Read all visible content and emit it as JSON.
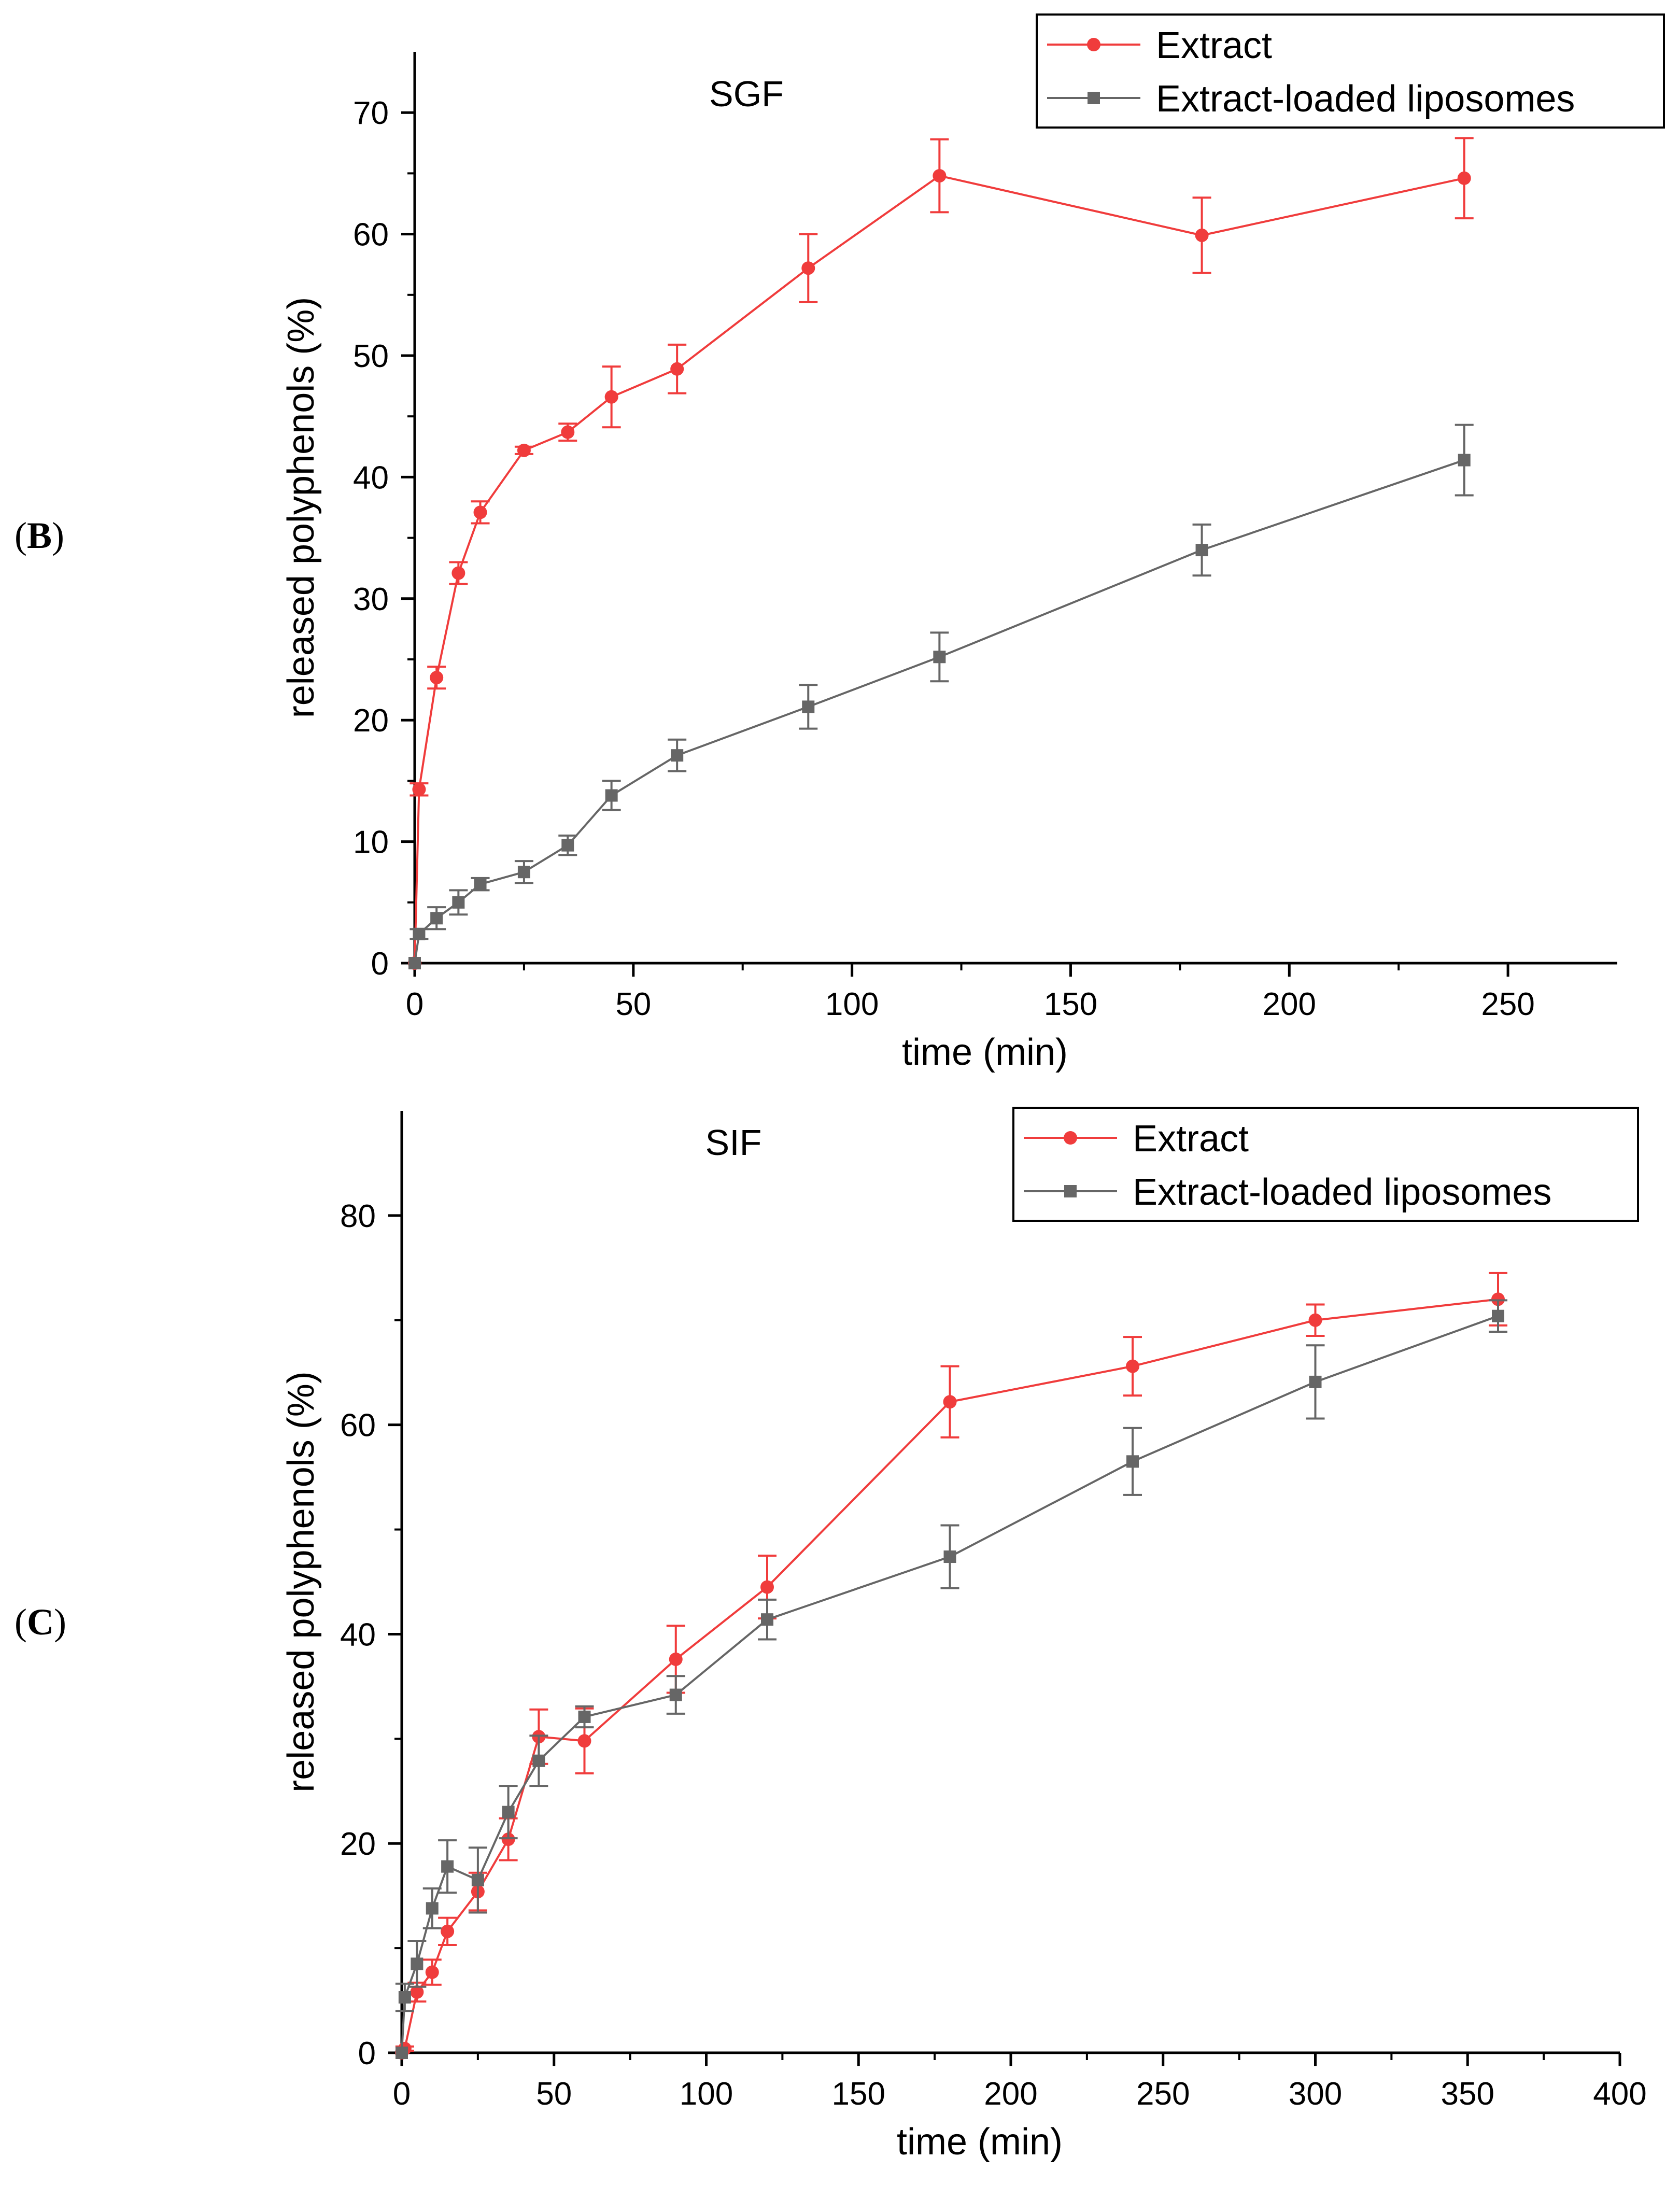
{
  "panels": [
    {
      "panel_label": "B",
      "title": "SGF",
      "xlabel": "time (min)",
      "ylabel": "released polyphenols (%)",
      "xlim": [
        0,
        275
      ],
      "ylim": [
        0,
        75
      ],
      "xticks": [
        0,
        50,
        100,
        150,
        200,
        250
      ],
      "yticks": [
        0,
        10,
        20,
        30,
        40,
        50,
        60,
        70
      ],
      "legend": [
        "Extract",
        "Extract-loaded liposomes"
      ],
      "legend_position": "top-right"
    },
    {
      "panel_label": "C",
      "title": "SIF",
      "xlabel": "time (min)",
      "ylabel": "released polyphenols (%)",
      "xlim": [
        0,
        400
      ],
      "ylim": [
        0,
        90
      ],
      "xticks": [
        0,
        50,
        100,
        150,
        200,
        250,
        300,
        350,
        400
      ],
      "yticks": [
        0,
        20,
        40,
        60,
        80
      ],
      "legend": [
        "Extract",
        "Extract-loaded liposomes"
      ],
      "legend_position": "top-right"
    }
  ],
  "colors": {
    "extract": "#f03c3c",
    "liposomes": "#666666",
    "axis": "#000000"
  },
  "chart_data": [
    {
      "type": "line",
      "title": "SGF",
      "xlabel": "time (min)",
      "ylabel": "released polyphenols (%)",
      "xlim": [
        0,
        275
      ],
      "ylim": [
        0,
        75
      ],
      "series": [
        {
          "name": "Extract",
          "marker": "circle",
          "x": [
            0,
            1,
            5,
            10,
            15,
            25,
            35,
            45,
            60,
            90,
            120,
            180,
            240
          ],
          "y": [
            0,
            14.3,
            23.5,
            32.1,
            37.1,
            42.2,
            43.7,
            46.6,
            48.9,
            57.2,
            64.8,
            59.9,
            64.6
          ],
          "err": [
            0,
            0.5,
            0.9,
            0.9,
            0.9,
            0.3,
            0.7,
            2.5,
            2.0,
            2.8,
            3.0,
            3.1,
            3.3
          ]
        },
        {
          "name": "Extract-loaded liposomes",
          "marker": "square",
          "x": [
            0,
            1,
            5,
            10,
            15,
            25,
            35,
            45,
            60,
            90,
            120,
            180,
            240
          ],
          "y": [
            0,
            2.4,
            3.7,
            5.0,
            6.5,
            7.5,
            9.7,
            13.8,
            17.1,
            21.1,
            25.2,
            34.0,
            41.4
          ],
          "err": [
            0,
            0.4,
            0.9,
            1.0,
            0.5,
            0.9,
            0.8,
            1.2,
            1.3,
            1.8,
            2.0,
            2.1,
            2.9
          ]
        }
      ]
    },
    {
      "type": "line",
      "title": "SIF",
      "xlabel": "time (min)",
      "ylabel": "released polyphenols (%)",
      "xlim": [
        0,
        400
      ],
      "ylim": [
        0,
        90
      ],
      "series": [
        {
          "name": "Extract",
          "marker": "circle",
          "x": [
            0,
            1,
            5,
            10,
            15,
            25,
            35,
            45,
            60,
            90,
            120,
            180,
            240,
            300,
            360
          ],
          "y": [
            0,
            0.4,
            5.8,
            7.7,
            11.6,
            15.4,
            20.4,
            30.2,
            29.8,
            37.6,
            44.5,
            62.2,
            65.6,
            70.0,
            72.0
          ],
          "err": [
            0,
            0.2,
            0.9,
            1.2,
            1.3,
            1.8,
            2.0,
            2.6,
            3.1,
            3.2,
            3.0,
            3.4,
            2.8,
            1.5,
            2.5
          ]
        },
        {
          "name": "Extract-loaded liposomes",
          "marker": "square",
          "x": [
            0,
            1,
            5,
            10,
            15,
            25,
            35,
            45,
            60,
            90,
            120,
            180,
            240,
            300,
            360
          ],
          "y": [
            0,
            5.3,
            8.5,
            13.8,
            17.8,
            16.5,
            23.0,
            27.9,
            32.1,
            34.2,
            41.4,
            47.4,
            56.5,
            64.1,
            70.4
          ],
          "err": [
            0,
            1.3,
            2.2,
            1.9,
            2.5,
            3.1,
            2.5,
            2.4,
            1.0,
            1.8,
            1.9,
            3.0,
            3.2,
            3.5,
            1.5
          ]
        }
      ]
    }
  ]
}
